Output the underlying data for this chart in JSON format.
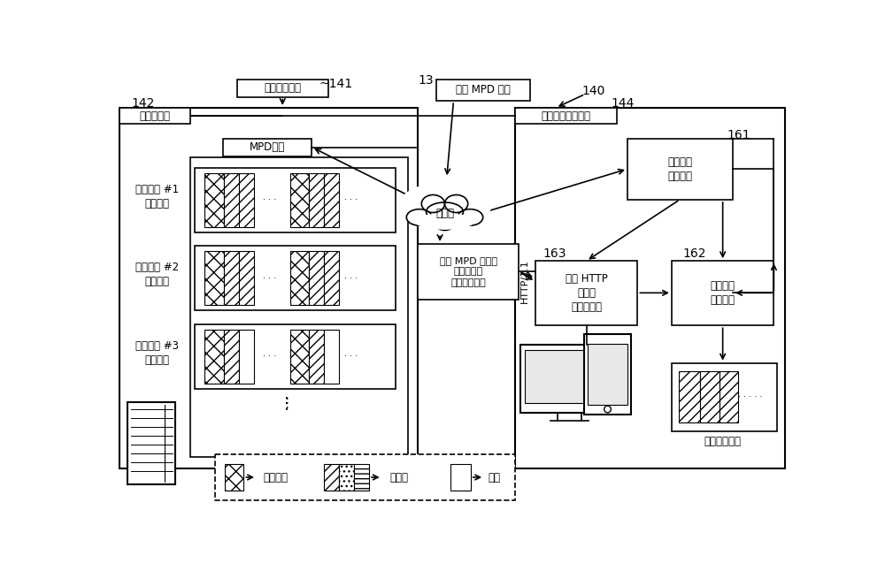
{
  "bg_color": "#ffffff",
  "label_142": "142",
  "label_141": "~141",
  "label_140": "140",
  "label_144": "144",
  "label_161": "161",
  "label_162": "162",
  "label_163": "163",
  "label_13": "13",
  "text_web_server": "网络服务器",
  "text_file_gen": "文件生成设备",
  "text_mpd": "MPD文件",
  "text_bitrate1": "编码速度 #1\n的片段组",
  "text_bitrate2": "编码速度 #2\n的片段组",
  "text_bitrate3": "编码速度 #3\n的片段组",
  "text_internet": "互联网",
  "text_get_mpd": "获取 MPD 文件",
  "text_mpd_info": "基于 MPD 文件的\n信息请求／\n分配必要数据",
  "text_http11": "HTTP/1.1",
  "text_motion_terminal": "运动图像再现终端",
  "text_stream_ctrl": "流数据的\n控制软件",
  "text_http_client": "用于 HTTP\n访问的\n客户端软件",
  "text_motion_sw": "运动图像\n再现软件",
  "text_reproduce": "再现运动图像",
  "text_seg_index": "片段索引",
  "text_subseg": "子片段",
  "text_segment": "片段"
}
